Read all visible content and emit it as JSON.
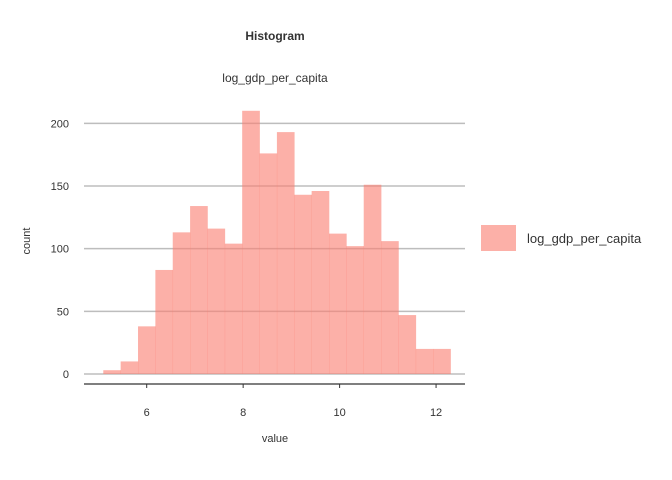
{
  "chart_data": {
    "type": "bar",
    "title": "Histogram",
    "subtitle": "log_gdp_per_capita",
    "xlabel": "value",
    "ylabel": "count",
    "xlim": [
      4.7,
      12.6
    ],
    "ylim": [
      -8,
      225
    ],
    "xticks": [
      6,
      8,
      10,
      12
    ],
    "yticks": [
      0,
      50,
      100,
      150,
      200
    ],
    "grid": "horizontal",
    "legend": "right",
    "bin_width": 0.36,
    "series": [
      {
        "name": "log_gdp_per_capita",
        "color": "#fa8072",
        "bins": [
          {
            "x0": 5.1,
            "x1": 5.46,
            "count": 3
          },
          {
            "x0": 5.46,
            "x1": 5.82,
            "count": 10
          },
          {
            "x0": 5.82,
            "x1": 6.18,
            "count": 38
          },
          {
            "x0": 6.18,
            "x1": 6.54,
            "count": 83
          },
          {
            "x0": 6.54,
            "x1": 6.9,
            "count": 113
          },
          {
            "x0": 6.9,
            "x1": 7.26,
            "count": 134
          },
          {
            "x0": 7.26,
            "x1": 7.62,
            "count": 116
          },
          {
            "x0": 7.62,
            "x1": 7.98,
            "count": 104
          },
          {
            "x0": 7.98,
            "x1": 8.34,
            "count": 210
          },
          {
            "x0": 8.34,
            "x1": 8.7,
            "count": 176
          },
          {
            "x0": 8.7,
            "x1": 9.06,
            "count": 193
          },
          {
            "x0": 9.06,
            "x1": 9.42,
            "count": 143
          },
          {
            "x0": 9.42,
            "x1": 9.78,
            "count": 146
          },
          {
            "x0": 9.78,
            "x1": 10.14,
            "count": 112
          },
          {
            "x0": 10.14,
            "x1": 10.5,
            "count": 102
          },
          {
            "x0": 10.5,
            "x1": 10.86,
            "count": 151
          },
          {
            "x0": 10.86,
            "x1": 11.22,
            "count": 106
          },
          {
            "x0": 11.22,
            "x1": 11.58,
            "count": 47
          },
          {
            "x0": 11.58,
            "x1": 11.94,
            "count": 20
          },
          {
            "x0": 11.94,
            "x1": 12.3,
            "count": 20
          }
        ]
      }
    ]
  }
}
